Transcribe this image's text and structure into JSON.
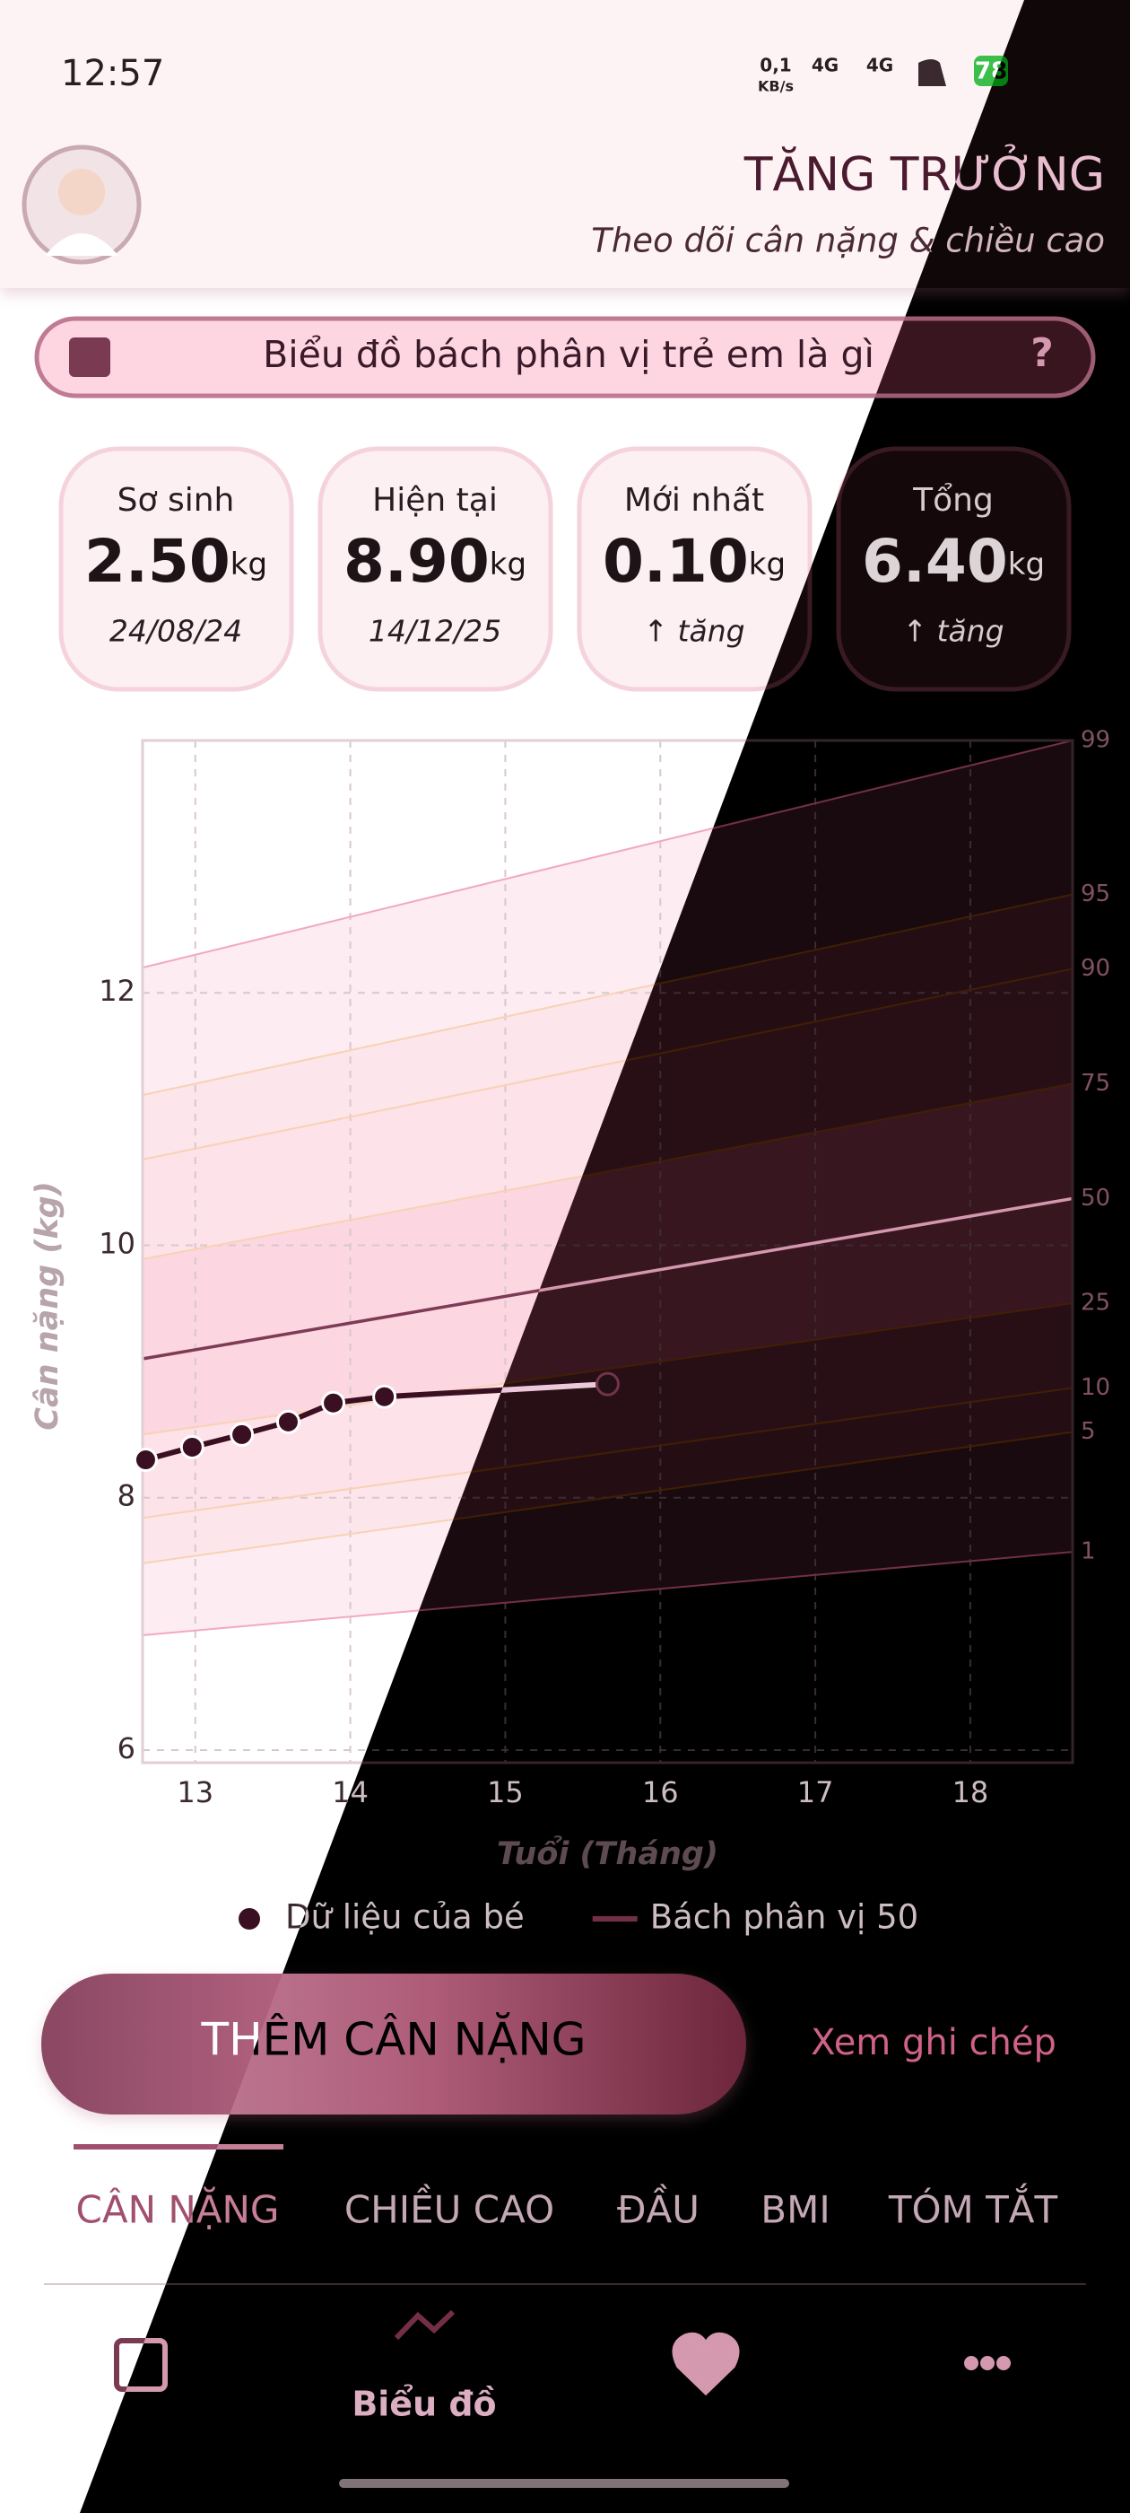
{
  "status": {
    "time": "12:57",
    "speed": "0,1",
    "speed_unit": "KB/s",
    "network": [
      "4G",
      "4G"
    ],
    "battery": "78"
  },
  "header": {
    "title": "TĂNG TRƯỞNG",
    "subtitle": "Theo dõi cân nặng & chiều cao"
  },
  "banner": {
    "text": "Biểu đồ bách phân vị trẻ em là gì",
    "help": "?"
  },
  "cards": [
    {
      "label": "Sơ sinh",
      "value": "2.50",
      "unit": "kg",
      "note": "24/08/24"
    },
    {
      "label": "Hiện tại",
      "value": "8.90",
      "unit": "kg",
      "note": "14/12/25"
    },
    {
      "label": "Mới nhất",
      "value": "0.10",
      "unit": "kg",
      "note": "↑ tăng"
    },
    {
      "label": "Tổng",
      "value": "6.40",
      "unit": "kg",
      "note": "↑ tăng"
    }
  ],
  "chart_data": {
    "type": "line",
    "x_label": "Tuổi (Tháng)",
    "y_label": "Cân nặng (kg)",
    "xlim": [
      12.66,
      18.66
    ],
    "xticks": [
      13,
      14,
      15,
      16,
      17,
      18
    ],
    "ylim": [
      5.9,
      14
    ],
    "yticks": [
      6,
      8,
      10,
      12
    ],
    "grid": true,
    "series": [
      {
        "name": "Dữ liệu của bé",
        "color": "#3b0f22",
        "x": [
          12.68,
          12.98,
          13.3,
          13.6,
          13.89,
          14.22,
          15.66
        ],
        "values": [
          8.3,
          8.4,
          8.5,
          8.6,
          8.75,
          8.8,
          8.9
        ]
      }
    ],
    "percentile_x": [
      12.66,
      18.66
    ],
    "percentiles": [
      {
        "label": "99",
        "values": [
          12.2,
          14.0
        ],
        "color": "#f2a9c0",
        "band_color": "#fdedf2"
      },
      {
        "label": "95",
        "values": [
          11.19,
          12.78
        ],
        "color": "#f8d2b4",
        "band_color": "#fde5ec"
      },
      {
        "label": "90",
        "values": [
          10.68,
          12.19
        ],
        "color": "#f8d2b4",
        "band_color": "#fde2ea"
      },
      {
        "label": "75",
        "values": [
          9.89,
          11.28
        ],
        "color": "#f8d2b4",
        "band_color": "#fcd6e0"
      },
      {
        "label": "50",
        "name": "Bách phân vị 50",
        "values": [
          9.1,
          10.37
        ],
        "color": "#7d3b55",
        "band_color": "#fcd6e0"
      },
      {
        "label": "25",
        "values": [
          8.5,
          9.54
        ],
        "color": "#f8d2b4",
        "band_color": "#fde2ea"
      },
      {
        "label": "10",
        "values": [
          7.84,
          8.87
        ],
        "color": "#f8d2b4",
        "band_color": "#fde5ec"
      },
      {
        "label": "5",
        "values": [
          7.48,
          8.52
        ],
        "color": "#f8d2b4",
        "band_color": "#fdedf2"
      },
      {
        "label": "1",
        "values": [
          6.91,
          7.57
        ],
        "color": "#f2a9c0"
      }
    ]
  },
  "actions": {
    "primary": "THÊM CÂN NẶNG",
    "secondary": "Xem ghi chép"
  },
  "tabs": [
    "CÂN NẶNG",
    "CHIỀU CAO",
    "ĐẦU",
    "BMI",
    "TÓM TẮT"
  ],
  "nav": {
    "active_label": "Biểu đồ"
  }
}
